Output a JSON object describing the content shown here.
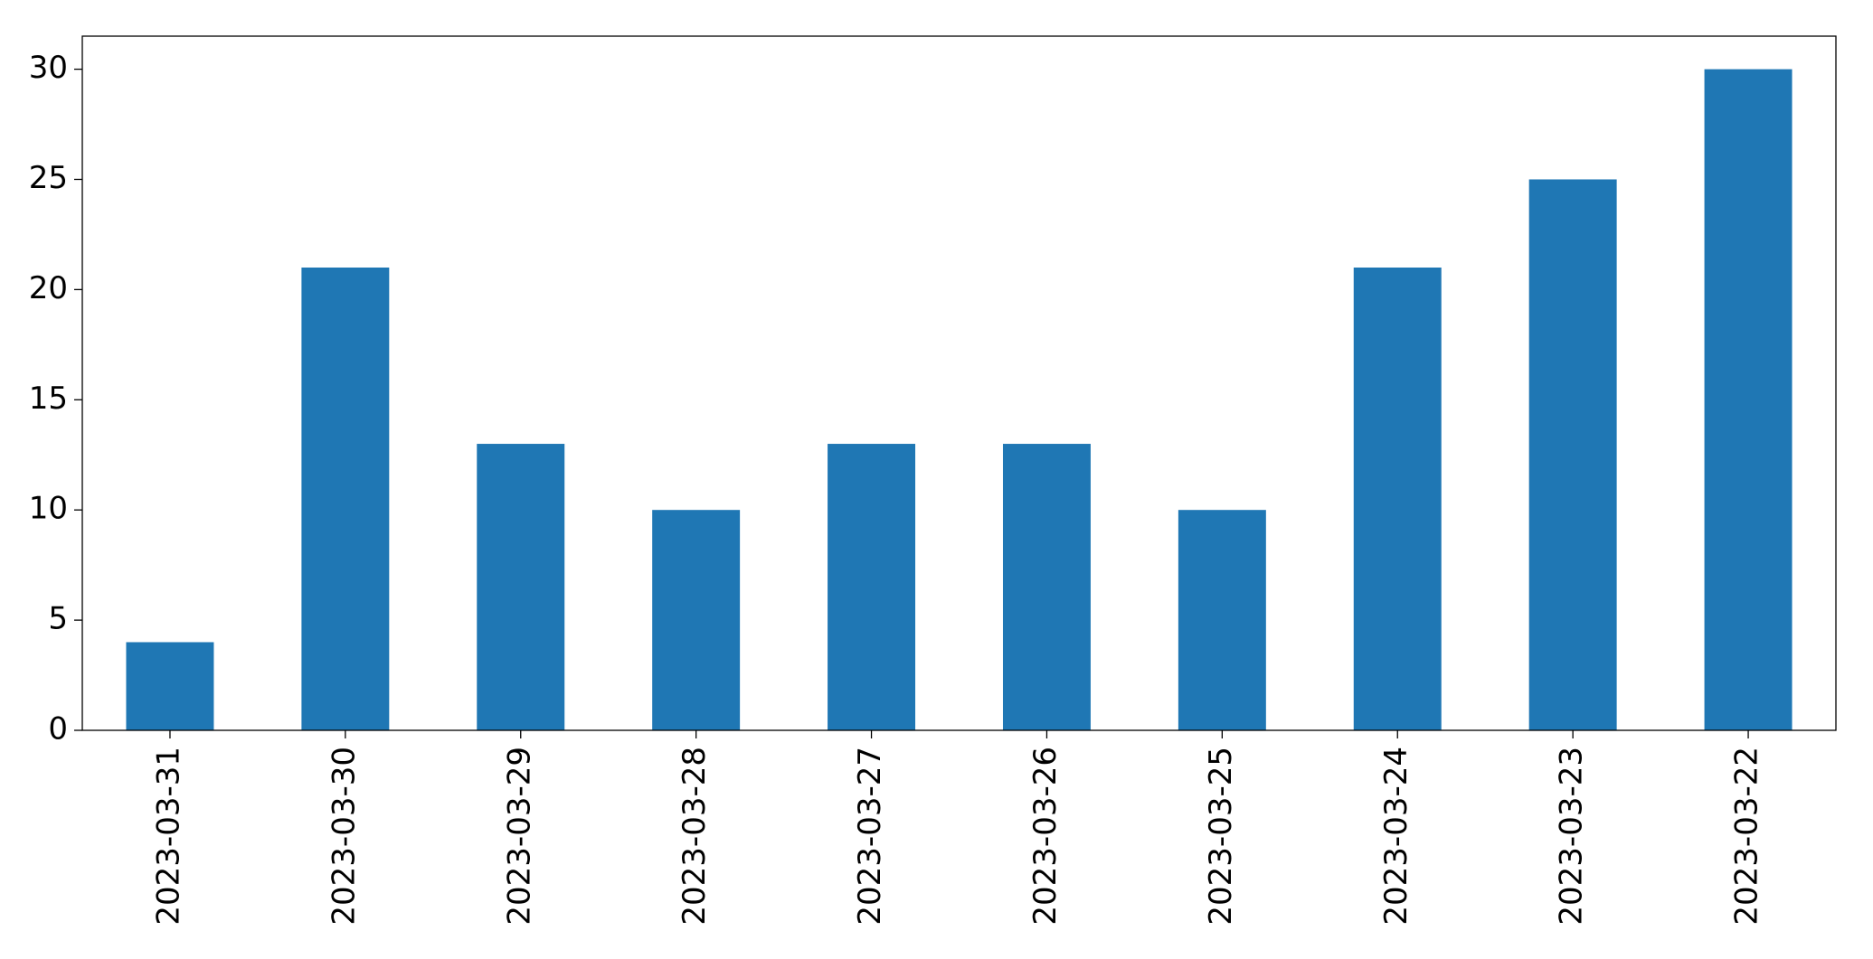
{
  "chart_data": {
    "type": "bar",
    "categories": [
      "2023-03-31",
      "2023-03-30",
      "2023-03-29",
      "2023-03-28",
      "2023-03-27",
      "2023-03-26",
      "2023-03-25",
      "2023-03-24",
      "2023-03-23",
      "2023-03-22"
    ],
    "values": [
      4,
      21,
      13,
      10,
      13,
      13,
      10,
      21,
      25,
      30
    ],
    "color": "#1f77b4",
    "ylim": [
      0,
      31.5
    ],
    "yticks": [
      0,
      5,
      10,
      15,
      20,
      25,
      30
    ],
    "grid": false
  }
}
